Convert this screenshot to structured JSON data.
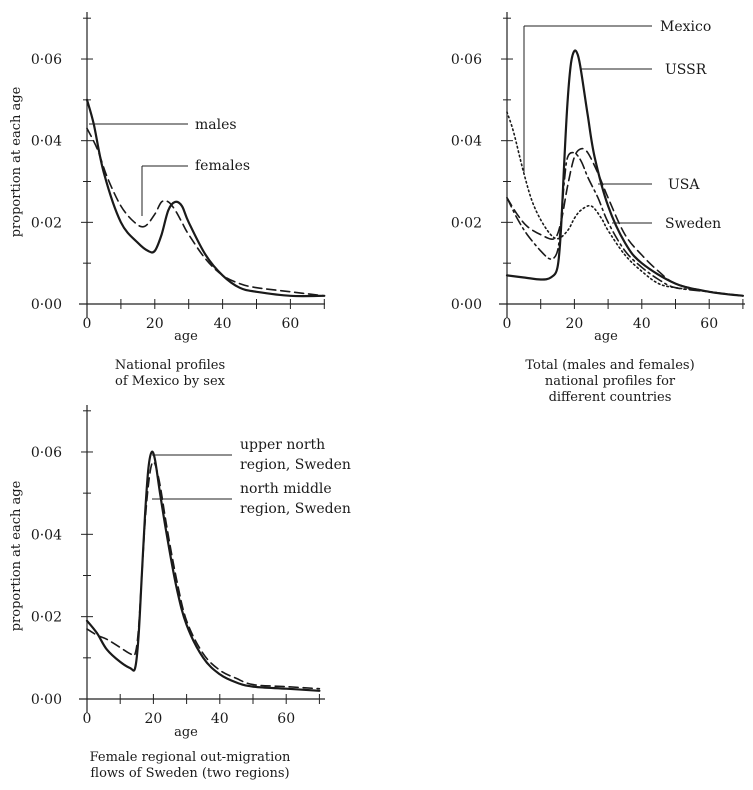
{
  "chart_data": [
    {
      "id": "mexico",
      "type": "line",
      "xlabel": "age",
      "ylabel": "proportion at each age",
      "xlim": [
        0,
        70
      ],
      "ylim": [
        0,
        0.07
      ],
      "xticks": [
        0,
        20,
        40,
        60
      ],
      "yticks": [
        0.0,
        0.02,
        0.04,
        0.06
      ],
      "xtick_labels": [
        "0",
        "20",
        "40",
        "60"
      ],
      "ytick_labels": [
        "0·00",
        "0·02",
        "0·04",
        "0·06"
      ],
      "grid": false,
      "caption": [
        "National profiles",
        "of Mexico by sex"
      ],
      "series": [
        {
          "name": "males",
          "style": "solid",
          "x": [
            0,
            2,
            5,
            10,
            15,
            18,
            20,
            22,
            24,
            26,
            28,
            30,
            35,
            40,
            45,
            50,
            60,
            70
          ],
          "y": [
            0.05,
            0.044,
            0.032,
            0.02,
            0.015,
            0.013,
            0.013,
            0.017,
            0.023,
            0.025,
            0.024,
            0.02,
            0.012,
            0.007,
            0.004,
            0.003,
            0.002,
            0.002
          ]
        },
        {
          "name": "females",
          "style": "dashed",
          "x": [
            0,
            3,
            6,
            10,
            14,
            17,
            20,
            22,
            24,
            26,
            28,
            30,
            35,
            40,
            45,
            50,
            60,
            70
          ],
          "y": [
            0.043,
            0.038,
            0.031,
            0.024,
            0.02,
            0.019,
            0.022,
            0.025,
            0.025,
            0.023,
            0.02,
            0.017,
            0.011,
            0.007,
            0.005,
            0.004,
            0.003,
            0.002
          ]
        }
      ],
      "annotations": [
        {
          "text": "males",
          "series": "males"
        },
        {
          "text": "females",
          "series": "females"
        }
      ]
    },
    {
      "id": "countries",
      "type": "line",
      "xlabel": "age",
      "ylabel": "",
      "xlim": [
        0,
        70
      ],
      "ylim": [
        0,
        0.07
      ],
      "xticks": [
        0,
        20,
        40,
        60
      ],
      "yticks": [
        0.0,
        0.02,
        0.04,
        0.06
      ],
      "xtick_labels": [
        "0",
        "20",
        "40",
        "60"
      ],
      "ytick_labels": [
        "0·00",
        "0·02",
        "0·04",
        "0·06"
      ],
      "grid": false,
      "caption": [
        "Total (males and females)",
        "national profiles for",
        "different countries"
      ],
      "series": [
        {
          "name": "Mexico",
          "style": "dotted",
          "x": [
            0,
            2,
            5,
            8,
            12,
            15,
            18,
            20,
            22,
            25,
            28,
            30,
            35,
            40,
            45,
            50,
            60,
            70
          ],
          "y": [
            0.047,
            0.042,
            0.032,
            0.024,
            0.018,
            0.016,
            0.018,
            0.021,
            0.023,
            0.024,
            0.021,
            0.018,
            0.012,
            0.008,
            0.005,
            0.004,
            0.003,
            0.002
          ]
        },
        {
          "name": "USSR",
          "style": "solid",
          "x": [
            0,
            5,
            10,
            13,
            15,
            16,
            17,
            18,
            19,
            20,
            21,
            22,
            24,
            26,
            30,
            35,
            40,
            50,
            60,
            70
          ],
          "y": [
            0.007,
            0.0065,
            0.006,
            0.0065,
            0.009,
            0.018,
            0.035,
            0.05,
            0.059,
            0.062,
            0.061,
            0.057,
            0.046,
            0.036,
            0.024,
            0.015,
            0.01,
            0.005,
            0.003,
            0.002
          ]
        },
        {
          "name": "USA",
          "style": "dashed",
          "x": [
            0,
            3,
            6,
            10,
            14,
            16,
            18,
            20,
            22,
            24,
            27,
            30,
            35,
            40,
            45,
            50,
            60,
            70
          ],
          "y": [
            0.026,
            0.022,
            0.019,
            0.017,
            0.016,
            0.02,
            0.029,
            0.036,
            0.038,
            0.037,
            0.032,
            0.026,
            0.017,
            0.012,
            0.008,
            0.005,
            0.003,
            0.002
          ]
        },
        {
          "name": "Sweden",
          "style": "dashdot",
          "x": [
            0,
            3,
            6,
            10,
            13,
            15,
            16,
            17,
            18,
            20,
            22,
            24,
            27,
            30,
            35,
            40,
            45,
            50,
            60,
            70
          ],
          "y": [
            0.026,
            0.021,
            0.017,
            0.013,
            0.011,
            0.013,
            0.02,
            0.03,
            0.036,
            0.037,
            0.035,
            0.031,
            0.026,
            0.02,
            0.013,
            0.009,
            0.006,
            0.004,
            0.003,
            0.002
          ]
        }
      ],
      "annotations": [
        {
          "text": "Mexico",
          "series": "Mexico"
        },
        {
          "text": "USSR",
          "series": "USSR"
        },
        {
          "text": "USA",
          "series": "USA"
        },
        {
          "text": "Sweden",
          "series": "Sweden"
        }
      ]
    },
    {
      "id": "sweden-regions",
      "type": "line",
      "xlabel": "age",
      "ylabel": "proportion at each age",
      "xlim": [
        0,
        70
      ],
      "ylim": [
        0,
        0.07
      ],
      "xticks": [
        0,
        20,
        40,
        60
      ],
      "yticks": [
        0.0,
        0.02,
        0.04,
        0.06
      ],
      "xtick_labels": [
        "0",
        "20",
        "40",
        "60"
      ],
      "ytick_labels": [
        "0·00",
        "0·02",
        "0·04",
        "0·06"
      ],
      "grid": false,
      "caption": [
        "Female regional out-migration",
        "flows of Sweden (two regions)"
      ],
      "series": [
        {
          "name": "upper north region, Sweden",
          "style": "solid",
          "x": [
            0,
            3,
            6,
            10,
            13,
            14.5,
            15.5,
            16.5,
            17.5,
            18.5,
            19.5,
            20.5,
            22,
            24,
            27,
            30,
            35,
            40,
            45,
            50,
            60,
            70
          ],
          "y": [
            0.019,
            0.016,
            0.012,
            0.009,
            0.0075,
            0.0075,
            0.015,
            0.03,
            0.045,
            0.056,
            0.06,
            0.058,
            0.05,
            0.04,
            0.027,
            0.018,
            0.01,
            0.006,
            0.004,
            0.003,
            0.0025,
            0.002
          ]
        },
        {
          "name": "north middle region, Sweden",
          "style": "dashed",
          "x": [
            0,
            3,
            6,
            10,
            13,
            14.5,
            15.5,
            16.5,
            17.5,
            18.5,
            19.5,
            20.5,
            22,
            24,
            27,
            30,
            35,
            40,
            45,
            50,
            60,
            70
          ],
          "y": [
            0.017,
            0.0155,
            0.0145,
            0.0125,
            0.011,
            0.011,
            0.017,
            0.03,
            0.043,
            0.052,
            0.057,
            0.057,
            0.052,
            0.042,
            0.029,
            0.019,
            0.011,
            0.007,
            0.005,
            0.0035,
            0.003,
            0.0025
          ]
        }
      ],
      "annotations": [
        {
          "text": "upper north",
          "text2": "region, Sweden",
          "series": "upper north region, Sweden"
        },
        {
          "text": "north middle",
          "text2": "region, Sweden",
          "series": "north middle region, Sweden"
        }
      ]
    }
  ]
}
